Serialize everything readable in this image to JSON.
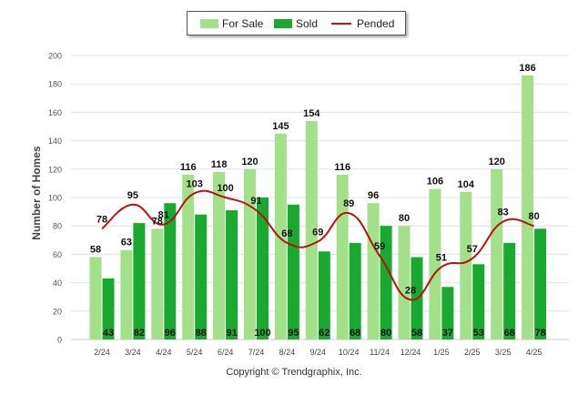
{
  "legend": {
    "for_sale": "For Sale",
    "sold": "Sold",
    "pended": "Pended"
  },
  "colors": {
    "for_sale": "#a2e08a",
    "sold": "#19a830",
    "pended": "#bb1111"
  },
  "footer": {
    "copyright": "Copyright © Trendgraphix, Inc."
  },
  "chart_data": {
    "type": "bar",
    "ylabel": "Number of Homes",
    "ylim": [
      0,
      200
    ],
    "yticks": [
      0,
      20,
      40,
      60,
      80,
      100,
      120,
      140,
      160,
      180,
      200
    ],
    "grid": true,
    "legend_position": "top-center",
    "categories": [
      "2/24",
      "3/24",
      "4/24",
      "5/24",
      "6/24",
      "7/24",
      "8/24",
      "9/24",
      "10/24",
      "11/24",
      "12/24",
      "1/25",
      "2/25",
      "3/25",
      "4/25"
    ],
    "series": [
      {
        "name": "For Sale",
        "type": "bar",
        "values": [
          58,
          63,
          78,
          116,
          118,
          120,
          145,
          154,
          116,
          96,
          80,
          106,
          104,
          120,
          186
        ]
      },
      {
        "name": "Sold",
        "type": "bar",
        "values": [
          43,
          82,
          96,
          88,
          91,
          100,
          95,
          62,
          68,
          80,
          58,
          37,
          53,
          68,
          78
        ]
      },
      {
        "name": "Pended",
        "type": "line",
        "values": [
          78,
          95,
          81,
          103,
          100,
          91,
          68,
          69,
          89,
          59,
          28,
          51,
          57,
          83,
          80
        ]
      }
    ]
  }
}
